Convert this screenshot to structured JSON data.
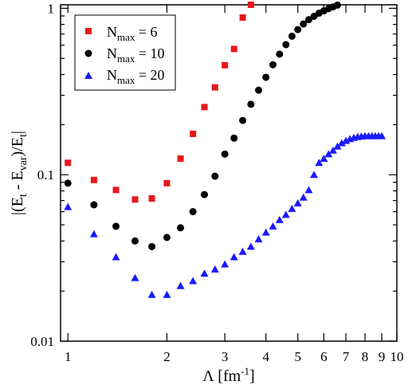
{
  "chart_data": {
    "type": "scatter",
    "x_scale": "log",
    "y_scale": "log",
    "xlim": [
      0.95,
      10
    ],
    "ylim": [
      0.01,
      1.05
    ],
    "x_ticks": [
      1,
      2,
      3,
      4,
      5,
      6,
      7,
      8,
      9,
      10
    ],
    "y_ticks": [
      0.01,
      0.1,
      1
    ],
    "x_tick_labels": [
      "1",
      "2",
      "3",
      "4",
      "5",
      "6",
      "7",
      "8",
      "9",
      "10"
    ],
    "y_tick_labels": [
      "0.01",
      "0.1",
      "1"
    ],
    "xlabel": {
      "main": "Λ [fm",
      "sup": "-1",
      "tail": "]"
    },
    "ylabel": {
      "p1": "|(E",
      "s1": "t",
      "p2": " - E",
      "s2": "var",
      "p3": ")/E",
      "s3": "t",
      "p4": "|"
    },
    "legend_position": "top-left",
    "series": [
      {
        "legend": {
          "base": "N",
          "sub": "max",
          "rest": " = 6"
        },
        "marker": "square",
        "color": "#e8181c",
        "points": [
          [
            1.0,
            0.118
          ],
          [
            1.2,
            0.093
          ],
          [
            1.4,
            0.081
          ],
          [
            1.6,
            0.071
          ],
          [
            1.8,
            0.072
          ],
          [
            2.0,
            0.089
          ],
          [
            2.2,
            0.125
          ],
          [
            2.4,
            0.176
          ],
          [
            2.6,
            0.255
          ],
          [
            2.8,
            0.335
          ],
          [
            3.0,
            0.455
          ],
          [
            3.2,
            0.57
          ],
          [
            3.4,
            0.88
          ],
          [
            3.6,
            1.05
          ]
        ]
      },
      {
        "legend": {
          "base": "N",
          "sub": "max",
          "rest": " = 10"
        },
        "marker": "circle",
        "color": "#000000",
        "points": [
          [
            1.0,
            0.089
          ],
          [
            1.2,
            0.066
          ],
          [
            1.4,
            0.049
          ],
          [
            1.6,
            0.04
          ],
          [
            1.8,
            0.037
          ],
          [
            2.0,
            0.042
          ],
          [
            2.2,
            0.048
          ],
          [
            2.4,
            0.06
          ],
          [
            2.6,
            0.076
          ],
          [
            2.8,
            0.098
          ],
          [
            3.0,
            0.133
          ],
          [
            3.2,
            0.166
          ],
          [
            3.4,
            0.212
          ],
          [
            3.6,
            0.265
          ],
          [
            3.8,
            0.322
          ],
          [
            4.0,
            0.385
          ],
          [
            4.2,
            0.458
          ],
          [
            4.4,
            0.53
          ],
          [
            4.6,
            0.605
          ],
          [
            4.8,
            0.68
          ],
          [
            5.0,
            0.745
          ],
          [
            5.2,
            0.805
          ],
          [
            5.4,
            0.855
          ],
          [
            5.6,
            0.895
          ],
          [
            5.8,
            0.935
          ],
          [
            6.0,
            0.965
          ],
          [
            6.2,
            0.995
          ],
          [
            6.4,
            1.02
          ],
          [
            6.6,
            1.045
          ]
        ]
      },
      {
        "legend": {
          "base": "N",
          "sub": "max",
          "rest": " = 20"
        },
        "marker": "triangle",
        "color": "#1a1aff",
        "points": [
          [
            1.0,
            0.064
          ],
          [
            1.2,
            0.044
          ],
          [
            1.4,
            0.032
          ],
          [
            1.6,
            0.024
          ],
          [
            1.8,
            0.019
          ],
          [
            2.0,
            0.019
          ],
          [
            2.2,
            0.0215
          ],
          [
            2.4,
            0.023
          ],
          [
            2.6,
            0.0255
          ],
          [
            2.8,
            0.027
          ],
          [
            3.0,
            0.029
          ],
          [
            3.2,
            0.032
          ],
          [
            3.4,
            0.0345
          ],
          [
            3.6,
            0.037
          ],
          [
            3.8,
            0.041
          ],
          [
            4.0,
            0.045
          ],
          [
            4.2,
            0.049
          ],
          [
            4.4,
            0.0535
          ],
          [
            4.6,
            0.0575
          ],
          [
            4.8,
            0.0625
          ],
          [
            5.0,
            0.0675
          ],
          [
            5.2,
            0.073
          ],
          [
            5.4,
            0.081
          ],
          [
            5.6,
            0.1
          ],
          [
            5.8,
            0.118
          ],
          [
            6.0,
            0.125
          ],
          [
            6.2,
            0.133
          ],
          [
            6.4,
            0.14
          ],
          [
            6.6,
            0.148
          ],
          [
            6.8,
            0.155
          ],
          [
            7.0,
            0.16
          ],
          [
            7.2,
            0.164
          ],
          [
            7.4,
            0.167
          ],
          [
            7.6,
            0.169
          ],
          [
            7.8,
            0.17
          ],
          [
            8.0,
            0.171
          ],
          [
            8.2,
            0.171
          ],
          [
            8.4,
            0.171
          ],
          [
            8.6,
            0.171
          ],
          [
            8.8,
            0.171
          ],
          [
            9.0,
            0.171
          ]
        ]
      }
    ]
  }
}
